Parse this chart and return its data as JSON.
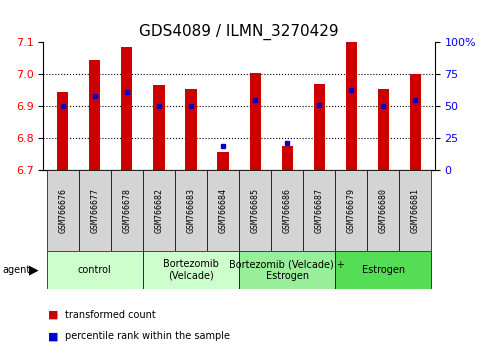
{
  "title": "GDS4089 / ILMN_3270429",
  "samples": [
    "GSM766676",
    "GSM766677",
    "GSM766678",
    "GSM766682",
    "GSM766683",
    "GSM766684",
    "GSM766685",
    "GSM766686",
    "GSM766687",
    "GSM766679",
    "GSM766680",
    "GSM766681"
  ],
  "bar_values": [
    6.945,
    7.045,
    7.085,
    6.965,
    6.955,
    6.755,
    7.005,
    6.775,
    6.97,
    7.1,
    6.955,
    7.0
  ],
  "bar_base": 6.7,
  "blue_dot_values": [
    6.9,
    6.932,
    6.945,
    6.9,
    6.9,
    6.775,
    6.92,
    6.785,
    6.905,
    6.95,
    6.9,
    6.92
  ],
  "ylim": [
    6.7,
    7.1
  ],
  "yticks_left": [
    6.7,
    6.8,
    6.9,
    7.0,
    7.1
  ],
  "yticks_right": [
    0,
    25,
    50,
    75,
    100
  ],
  "bar_color": "#cc0000",
  "dot_color": "#0000cc",
  "agent_groups": [
    {
      "label": "control",
      "start": 0,
      "end": 2,
      "color": "#ccffcc"
    },
    {
      "label": "Bortezomib\n(Velcade)",
      "start": 3,
      "end": 5,
      "color": "#ccffcc"
    },
    {
      "label": "Bortezomib (Velcade) +\nEstrogen",
      "start": 6,
      "end": 8,
      "color": "#99ee99"
    },
    {
      "label": "Estrogen",
      "start": 9,
      "end": 11,
      "color": "#55dd55"
    }
  ],
  "legend_red": "transformed count",
  "legend_blue": "percentile rank within the sample",
  "title_fontsize": 11,
  "tick_fontsize": 8,
  "sample_fontsize": 6,
  "group_fontsize": 7,
  "legend_fontsize": 7
}
